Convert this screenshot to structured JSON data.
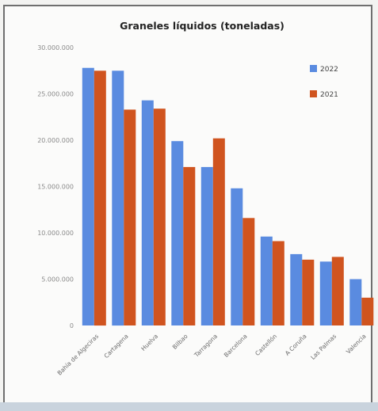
{
  "chart_data": {
    "type": "bar",
    "title": "Graneles líquidos (toneladas)",
    "xlabel": "",
    "ylabel": "",
    "categories": [
      "Bahía de Algeciras",
      "Cartagena",
      "Huelva",
      "Bilbao",
      "Tarragona",
      "Barcelona",
      "Castellón",
      "A Coruña",
      "Las Palmas",
      "Valencia"
    ],
    "y_tick_labels": [
      "0",
      "5.000.000",
      "10.000.000",
      "15.000.000",
      "20.000.000",
      "25.000.000",
      "30.000.000"
    ],
    "ylim": [
      0,
      30000000
    ],
    "grid": false,
    "legend_position": "top-right",
    "series": [
      {
        "name": "2022",
        "color": "#5a8be0",
        "values": [
          27800000,
          27500000,
          24300000,
          19900000,
          17100000,
          14800000,
          9600000,
          7700000,
          6900000,
          5000000
        ]
      },
      {
        "name": "2021",
        "color": "#d0541f",
        "values": [
          27500000,
          23300000,
          23400000,
          17100000,
          20200000,
          11600000,
          9100000,
          7100000,
          7400000,
          3000000
        ]
      }
    ]
  }
}
